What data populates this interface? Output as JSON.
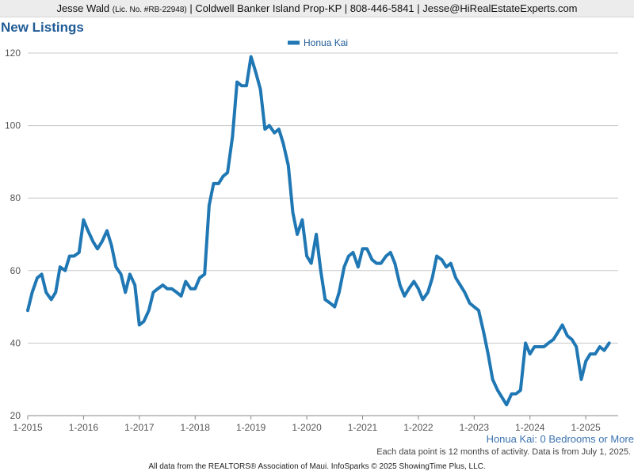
{
  "header": {
    "agent_name": "Jesse Wald",
    "license": "(Lic. No. #RB-22948)",
    "rest": "| Coldwell Banker Island Prop-KP | 808-446-5841 | Jesse@HiRealEstateExperts.com"
  },
  "colors": {
    "series": "#1f77b4",
    "title": "#1f5b96",
    "grid": "#c8c8c8"
  },
  "chart_data": {
    "type": "line",
    "title": "New Listings",
    "legend_position": "top-center",
    "grid": "horizontal",
    "ylim": [
      20,
      120
    ],
    "yticks": [
      20,
      40,
      60,
      80,
      100,
      120
    ],
    "xlim": [
      2015,
      2025.58
    ],
    "xticks": [
      {
        "value": 2015,
        "label": "1-2015"
      },
      {
        "value": 2016,
        "label": "1-2016"
      },
      {
        "value": 2017,
        "label": "1-2017"
      },
      {
        "value": 2018,
        "label": "1-2018"
      },
      {
        "value": 2019,
        "label": "1-2019"
      },
      {
        "value": 2020,
        "label": "1-2020"
      },
      {
        "value": 2021,
        "label": "1-2021"
      },
      {
        "value": 2022,
        "label": "1-2022"
      },
      {
        "value": 2023,
        "label": "1-2023"
      },
      {
        "value": 2024,
        "label": "1-2024"
      },
      {
        "value": 2025,
        "label": "1-2025"
      }
    ],
    "series": [
      {
        "name": "Honua Kai",
        "points": [
          [
            2015.0,
            49
          ],
          [
            2015.08,
            54
          ],
          [
            2015.17,
            58
          ],
          [
            2015.25,
            59
          ],
          [
            2015.33,
            54
          ],
          [
            2015.42,
            52
          ],
          [
            2015.5,
            54
          ],
          [
            2015.58,
            61
          ],
          [
            2015.67,
            60
          ],
          [
            2015.75,
            64
          ],
          [
            2015.83,
            64
          ],
          [
            2015.92,
            65
          ],
          [
            2016.0,
            74
          ],
          [
            2016.08,
            71
          ],
          [
            2016.17,
            68
          ],
          [
            2016.25,
            66
          ],
          [
            2016.33,
            68
          ],
          [
            2016.42,
            71
          ],
          [
            2016.5,
            67
          ],
          [
            2016.58,
            61
          ],
          [
            2016.67,
            59
          ],
          [
            2016.75,
            54
          ],
          [
            2016.83,
            59
          ],
          [
            2016.92,
            56
          ],
          [
            2017.0,
            45
          ],
          [
            2017.08,
            46
          ],
          [
            2017.17,
            49
          ],
          [
            2017.25,
            54
          ],
          [
            2017.33,
            55
          ],
          [
            2017.42,
            56
          ],
          [
            2017.5,
            55
          ],
          [
            2017.58,
            55
          ],
          [
            2017.67,
            54
          ],
          [
            2017.75,
            53
          ],
          [
            2017.83,
            57
          ],
          [
            2017.92,
            55
          ],
          [
            2018.0,
            55
          ],
          [
            2018.08,
            58
          ],
          [
            2018.17,
            59
          ],
          [
            2018.25,
            78
          ],
          [
            2018.33,
            84
          ],
          [
            2018.42,
            84
          ],
          [
            2018.5,
            86
          ],
          [
            2018.58,
            87
          ],
          [
            2018.67,
            97
          ],
          [
            2018.75,
            112
          ],
          [
            2018.83,
            111
          ],
          [
            2018.92,
            111
          ],
          [
            2019.0,
            119
          ],
          [
            2019.08,
            115
          ],
          [
            2019.17,
            110
          ],
          [
            2019.25,
            99
          ],
          [
            2019.33,
            100
          ],
          [
            2019.42,
            98
          ],
          [
            2019.5,
            99
          ],
          [
            2019.58,
            95
          ],
          [
            2019.67,
            89
          ],
          [
            2019.75,
            76
          ],
          [
            2019.83,
            70
          ],
          [
            2019.92,
            74
          ],
          [
            2020.0,
            64
          ],
          [
            2020.08,
            62
          ],
          [
            2020.17,
            70
          ],
          [
            2020.25,
            60
          ],
          [
            2020.33,
            52
          ],
          [
            2020.42,
            51
          ],
          [
            2020.5,
            50
          ],
          [
            2020.58,
            54
          ],
          [
            2020.67,
            61
          ],
          [
            2020.75,
            64
          ],
          [
            2020.83,
            65
          ],
          [
            2020.92,
            61
          ],
          [
            2021.0,
            66
          ],
          [
            2021.08,
            66
          ],
          [
            2021.17,
            63
          ],
          [
            2021.25,
            62
          ],
          [
            2021.33,
            62
          ],
          [
            2021.42,
            64
          ],
          [
            2021.5,
            65
          ],
          [
            2021.58,
            62
          ],
          [
            2021.67,
            56
          ],
          [
            2021.75,
            53
          ],
          [
            2021.83,
            55
          ],
          [
            2021.92,
            57
          ],
          [
            2022.0,
            55
          ],
          [
            2022.08,
            52
          ],
          [
            2022.17,
            54
          ],
          [
            2022.25,
            58
          ],
          [
            2022.33,
            64
          ],
          [
            2022.42,
            63
          ],
          [
            2022.5,
            61
          ],
          [
            2022.58,
            62
          ],
          [
            2022.67,
            58
          ],
          [
            2022.75,
            56
          ],
          [
            2022.83,
            54
          ],
          [
            2022.92,
            51
          ],
          [
            2023.0,
            50
          ],
          [
            2023.08,
            49
          ],
          [
            2023.17,
            43
          ],
          [
            2023.25,
            37
          ],
          [
            2023.33,
            30
          ],
          [
            2023.42,
            27
          ],
          [
            2023.5,
            25
          ],
          [
            2023.58,
            23
          ],
          [
            2023.67,
            26
          ],
          [
            2023.75,
            26
          ],
          [
            2023.83,
            27
          ],
          [
            2023.92,
            40
          ],
          [
            2024.0,
            37
          ],
          [
            2024.08,
            39
          ],
          [
            2024.17,
            39
          ],
          [
            2024.25,
            39
          ],
          [
            2024.33,
            40
          ],
          [
            2024.42,
            41
          ],
          [
            2024.5,
            43
          ],
          [
            2024.58,
            45
          ],
          [
            2024.67,
            42
          ],
          [
            2024.75,
            41
          ],
          [
            2024.83,
            39
          ],
          [
            2024.92,
            30
          ],
          [
            2025.0,
            35
          ],
          [
            2025.08,
            37
          ],
          [
            2025.17,
            37
          ],
          [
            2025.25,
            39
          ],
          [
            2025.33,
            38
          ],
          [
            2025.42,
            40
          ]
        ]
      }
    ]
  },
  "footer": {
    "series_label": "Honua Kai: 0 Bedrooms or More",
    "note": "Each data point is 12 months of activity. Data is from July 1, 2025.",
    "credit": "All data from the REALTORS® Association of Maui. InfoSparks © 2025 ShowingTime Plus, LLC."
  }
}
